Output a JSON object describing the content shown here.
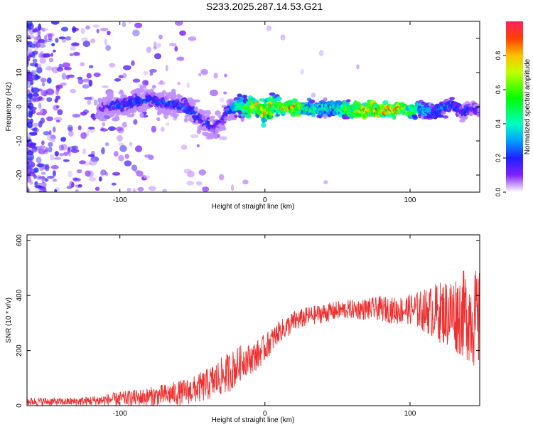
{
  "title": "S233.2025.287.14.53.G21",
  "colors": {
    "snr_line": "#ee3030",
    "frame": "#000000"
  },
  "chart_data": [
    {
      "type": "heatmap",
      "title": "S233.2025.287.14.53.G21",
      "xlabel": "Height of straight line (km)",
      "ylabel": "Frequency (Hz)",
      "xlim": [
        -164,
        148
      ],
      "ylim": [
        -25,
        25
      ],
      "xticks": [
        -100,
        0,
        100
      ],
      "xtick_labels": [
        "-100",
        "0",
        "100"
      ],
      "yticks": [
        -20,
        -10,
        0,
        10,
        20
      ],
      "ytick_labels": [
        "-20",
        "-10",
        "0",
        "10",
        "20"
      ],
      "colorbar": {
        "label": "Normalized spectral amplitude",
        "range": [
          0,
          1
        ],
        "ticks": [
          0,
          0.2,
          0.4,
          0.6,
          0.8
        ],
        "tick_labels": [
          "0.0",
          "0.2",
          "0.4",
          "0.6",
          "0.8"
        ]
      },
      "ridge": {
        "x": [
          -115,
          -110,
          -100,
          -90,
          -80,
          -70,
          -60,
          -50,
          -45,
          -40,
          -35,
          -30,
          -26,
          -22,
          -18,
          -12,
          -6,
          0,
          6,
          12,
          20,
          30,
          40,
          50,
          60,
          70,
          80,
          90,
          96,
          100,
          106,
          112,
          118,
          124,
          130,
          136,
          142,
          148
        ],
        "y": [
          -1,
          0,
          0.5,
          1.5,
          2,
          1.5,
          0.5,
          -1.5,
          -3.5,
          -5,
          -6,
          -4.5,
          -2,
          0,
          0,
          -0.5,
          0.5,
          -1.5,
          0.5,
          -0.5,
          0,
          -0.5,
          -0.5,
          -0.5,
          -1,
          -1,
          -1,
          -1,
          -1,
          -1.5,
          -0.5,
          -1,
          -1.5,
          0,
          0.5,
          -1.5,
          -0.5,
          -1
        ],
        "amplitude": [
          0.15,
          0.2,
          0.3,
          0.3,
          0.28,
          0.28,
          0.3,
          0.3,
          0.28,
          0.25,
          0.22,
          0.2,
          0.3,
          0.4,
          0.55,
          0.75,
          0.9,
          0.9,
          0.85,
          0.8,
          0.95,
          0.55,
          0.5,
          0.55,
          0.7,
          0.95,
          1.0,
          0.95,
          0.85,
          0.7,
          0.5,
          0.4,
          0.35,
          0.35,
          0.3,
          0.28,
          0.25,
          0.2
        ]
      }
    },
    {
      "type": "line",
      "xlabel": "Height of straight line (km)",
      "ylabel": "SNR (10 * v/v)",
      "xlim": [
        -164,
        148
      ],
      "ylim": [
        0,
        620
      ],
      "xticks": [
        -100,
        0,
        100
      ],
      "xtick_labels": [
        "-100",
        "0",
        "100"
      ],
      "yticks": [
        0,
        200,
        400,
        600
      ],
      "ytick_labels": [
        "0",
        "200",
        "400",
        "600"
      ],
      "series": [
        {
          "name": "SNR",
          "x": [
            -164,
            -150,
            -140,
            -130,
            -120,
            -110,
            -100,
            -90,
            -80,
            -70,
            -60,
            -50,
            -45,
            -40,
            -35,
            -30,
            -25,
            -20,
            -15,
            -10,
            -5,
            0,
            5,
            10,
            15,
            20,
            30,
            40,
            50,
            60,
            70,
            80,
            90,
            100,
            110,
            120,
            130,
            140,
            148
          ],
          "mean": [
            15,
            15,
            14,
            15,
            17,
            20,
            25,
            28,
            32,
            38,
            45,
            55,
            65,
            75,
            90,
            105,
            120,
            140,
            165,
            170,
            185,
            210,
            240,
            270,
            285,
            305,
            325,
            335,
            345,
            350,
            350,
            352,
            345,
            350,
            345,
            340,
            335,
            330,
            300
          ],
          "spread": [
            15,
            15,
            14,
            15,
            18,
            22,
            26,
            30,
            35,
            40,
            45,
            50,
            55,
            60,
            65,
            70,
            75,
            70,
            60,
            55,
            55,
            50,
            45,
            40,
            40,
            40,
            35,
            35,
            35,
            35,
            40,
            45,
            50,
            55,
            80,
            110,
            140,
            170,
            190
          ]
        }
      ]
    }
  ]
}
